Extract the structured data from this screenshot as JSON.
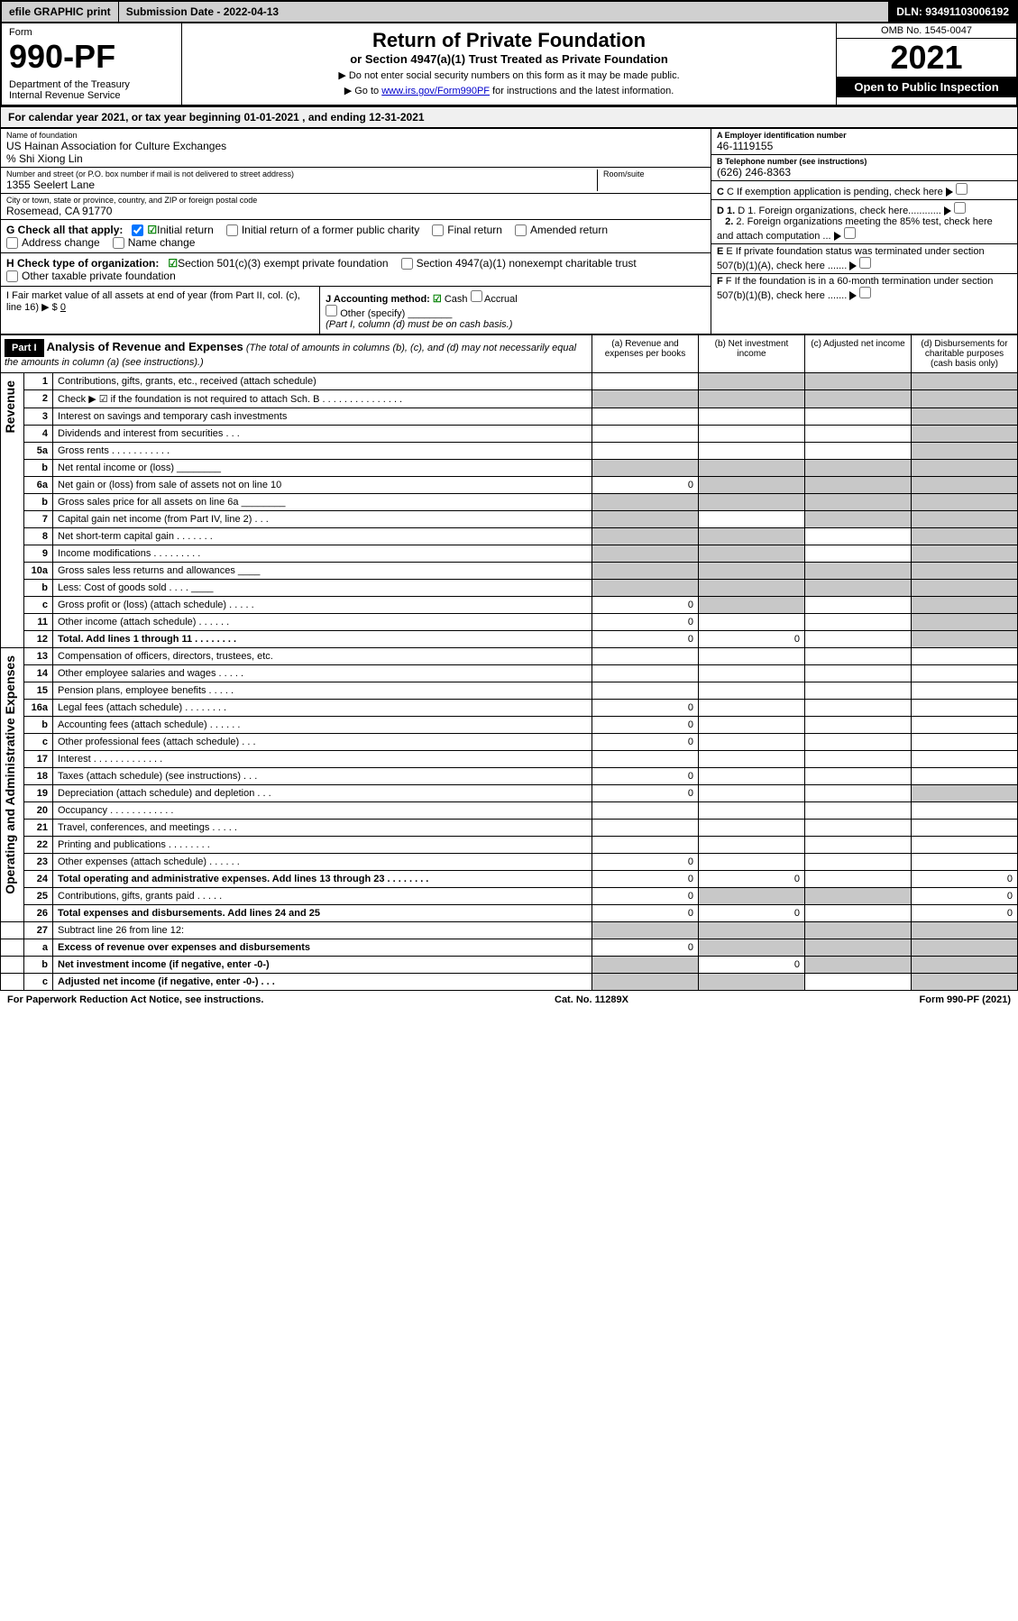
{
  "topbar": {
    "efile": "efile GRAPHIC print",
    "subdate": "Submission Date - 2022-04-13",
    "dln": "DLN: 93491103006192"
  },
  "header": {
    "form": "Form",
    "formnum": "990-PF",
    "dept": "Department of the Treasury\nInternal Revenue Service",
    "title": "Return of Private Foundation",
    "subtitle": "or Section 4947(a)(1) Trust Treated as Private Foundation",
    "note1": "▶ Do not enter social security numbers on this form as it may be made public.",
    "note2_pre": "▶ Go to ",
    "note2_link": "www.irs.gov/Form990PF",
    "note2_post": " for instructions and the latest information.",
    "omb": "OMB No. 1545-0047",
    "year": "2021",
    "inspect": "Open to Public Inspection"
  },
  "calyear": "For calendar year 2021, or tax year beginning 01-01-2021           , and ending 12-31-2021",
  "org": {
    "name_lbl": "Name of foundation",
    "name": "US Hainan Association for Culture Exchanges",
    "care": "% Shi Xiong Lin",
    "addr_lbl": "Number and street (or P.O. box number if mail is not delivered to street address)",
    "addr": "1355 Seelert Lane",
    "room_lbl": "Room/suite",
    "city_lbl": "City or town, state or province, country, and ZIP or foreign postal code",
    "city": "Rosemead, CA  91770",
    "ein_lbl": "A Employer identification number",
    "ein": "46-1119155",
    "tel_lbl": "B Telephone number (see instructions)",
    "tel": "(626) 246-8363",
    "c": "C If exemption application is pending, check here",
    "d1": "D 1. Foreign organizations, check here............",
    "d2": "2. Foreign organizations meeting the 85% test, check here and attach computation ...",
    "e": "E If private foundation status was terminated under section 507(b)(1)(A), check here .......",
    "f": "F If the foundation is in a 60-month termination under section 507(b)(1)(B), check here .......",
    "g": "G Check all that apply:",
    "g_opts": [
      "Initial return",
      "Initial return of a former public charity",
      "Final return",
      "Amended return",
      "Address change",
      "Name change"
    ],
    "h": "H Check type of organization:",
    "h_opts": [
      "Section 501(c)(3) exempt private foundation",
      "Section 4947(a)(1) nonexempt charitable trust",
      "Other taxable private foundation"
    ],
    "i": "I Fair market value of all assets at end of year (from Part II, col. (c), line 16) ▶ $",
    "i_val": "0",
    "j": "J Accounting method:",
    "j_opts": [
      "Cash",
      "Accrual",
      "Other (specify)"
    ],
    "j_note": "(Part I, column (d) must be on cash basis.)"
  },
  "part1": {
    "label": "Part I",
    "title": "Analysis of Revenue and Expenses",
    "title_note": " (The total of amounts in columns (b), (c), and (d) may not necessarily equal the amounts in column (a) (see instructions).)",
    "cols": [
      "(a) Revenue and expenses per books",
      "(b) Net investment income",
      "(c) Adjusted net income",
      "(d) Disbursements for charitable purposes (cash basis only)"
    ]
  },
  "sections": {
    "revenue": "Revenue",
    "expenses": "Operating and Administrative Expenses"
  },
  "rows": [
    {
      "n": "1",
      "d": "Contributions, gifts, grants, etc., received (attach schedule)",
      "a": "",
      "b": "g",
      "c": "g",
      "dd": "g"
    },
    {
      "n": "2",
      "d": "Check ▶ ☑ if the foundation is not required to attach Sch. B   .  .  .  .  .  .  .  .  .  .  .  .  .  .  .",
      "a": "g",
      "b": "g",
      "c": "g",
      "dd": "g"
    },
    {
      "n": "3",
      "d": "Interest on savings and temporary cash investments",
      "a": "",
      "b": "",
      "c": "",
      "dd": "g"
    },
    {
      "n": "4",
      "d": "Dividends and interest from securities   .  .  .",
      "a": "",
      "b": "",
      "c": "",
      "dd": "g"
    },
    {
      "n": "5a",
      "d": "Gross rents   .  .  .  .  .  .  .  .  .  .  .",
      "a": "",
      "b": "",
      "c": "",
      "dd": "g"
    },
    {
      "n": "b",
      "d": "Net rental income or (loss)  ________",
      "a": "g",
      "b": "g",
      "c": "g",
      "dd": "g"
    },
    {
      "n": "6a",
      "d": "Net gain or (loss) from sale of assets not on line 10",
      "a": "0",
      "b": "g",
      "c": "g",
      "dd": "g"
    },
    {
      "n": "b",
      "d": "Gross sales price for all assets on line 6a ________",
      "a": "g",
      "b": "g",
      "c": "g",
      "dd": "g"
    },
    {
      "n": "7",
      "d": "Capital gain net income (from Part IV, line 2)   .  .  .",
      "a": "g",
      "b": "",
      "c": "g",
      "dd": "g"
    },
    {
      "n": "8",
      "d": "Net short-term capital gain   .  .  .  .  .  .  .",
      "a": "g",
      "b": "g",
      "c": "",
      "dd": "g"
    },
    {
      "n": "9",
      "d": "Income modifications   .  .  .  .  .  .  .  .  .",
      "a": "g",
      "b": "g",
      "c": "",
      "dd": "g"
    },
    {
      "n": "10a",
      "d": "Gross sales less returns and allowances  ____",
      "a": "g",
      "b": "g",
      "c": "g",
      "dd": "g"
    },
    {
      "n": "b",
      "d": "Less: Cost of goods sold   .  .  .  .   ____",
      "a": "g",
      "b": "g",
      "c": "g",
      "dd": "g"
    },
    {
      "n": "c",
      "d": "Gross profit or (loss) (attach schedule)   .  .  .  .  .",
      "a": "0",
      "b": "g",
      "c": "",
      "dd": "g"
    },
    {
      "n": "11",
      "d": "Other income (attach schedule)   .  .  .  .  .  .",
      "a": "0",
      "b": "",
      "c": "",
      "dd": "g"
    },
    {
      "n": "12",
      "d": "Total. Add lines 1 through 11   .  .  .  .  .  .  .  .",
      "a": "0",
      "b": "0",
      "c": "",
      "dd": "g",
      "bold": true
    }
  ],
  "exp_rows": [
    {
      "n": "13",
      "d": "Compensation of officers, directors, trustees, etc.",
      "a": "",
      "b": "",
      "c": "",
      "dd": ""
    },
    {
      "n": "14",
      "d": "Other employee salaries and wages   .  .  .  .  .",
      "a": "",
      "b": "",
      "c": "",
      "dd": ""
    },
    {
      "n": "15",
      "d": "Pension plans, employee benefits   .  .  .  .  .",
      "a": "",
      "b": "",
      "c": "",
      "dd": ""
    },
    {
      "n": "16a",
      "d": "Legal fees (attach schedule)  .  .  .  .  .  .  .  .",
      "a": "0",
      "b": "",
      "c": "",
      "dd": ""
    },
    {
      "n": "b",
      "d": "Accounting fees (attach schedule)  .  .  .  .  .  .",
      "a": "0",
      "b": "",
      "c": "",
      "dd": ""
    },
    {
      "n": "c",
      "d": "Other professional fees (attach schedule)   .  .  .",
      "a": "0",
      "b": "",
      "c": "",
      "dd": ""
    },
    {
      "n": "17",
      "d": "Interest  .  .  .  .  .  .  .  .  .  .  .  .  .",
      "a": "",
      "b": "",
      "c": "",
      "dd": ""
    },
    {
      "n": "18",
      "d": "Taxes (attach schedule) (see instructions)   .  .  .",
      "a": "0",
      "b": "",
      "c": "",
      "dd": ""
    },
    {
      "n": "19",
      "d": "Depreciation (attach schedule) and depletion   .  .  .",
      "a": "0",
      "b": "",
      "c": "",
      "dd": "g"
    },
    {
      "n": "20",
      "d": "Occupancy  .  .  .  .  .  .  .  .  .  .  .  .",
      "a": "",
      "b": "",
      "c": "",
      "dd": ""
    },
    {
      "n": "21",
      "d": "Travel, conferences, and meetings   .  .  .  .  .",
      "a": "",
      "b": "",
      "c": "",
      "dd": ""
    },
    {
      "n": "22",
      "d": "Printing and publications   .  .  .  .  .  .  .  .",
      "a": "",
      "b": "",
      "c": "",
      "dd": ""
    },
    {
      "n": "23",
      "d": "Other expenses (attach schedule)  .  .  .  .  .  .",
      "a": "0",
      "b": "",
      "c": "",
      "dd": ""
    },
    {
      "n": "24",
      "d": "Total operating and administrative expenses. Add lines 13 through 23   .  .  .  .  .  .  .  .",
      "a": "0",
      "b": "0",
      "c": "",
      "dd": "0",
      "bold": true
    },
    {
      "n": "25",
      "d": "Contributions, gifts, grants paid   .  .  .  .  .",
      "a": "0",
      "b": "g",
      "c": "g",
      "dd": "0"
    },
    {
      "n": "26",
      "d": "Total expenses and disbursements. Add lines 24 and 25",
      "a": "0",
      "b": "0",
      "c": "",
      "dd": "0",
      "bold": true
    }
  ],
  "bottom_rows": [
    {
      "n": "27",
      "d": "Subtract line 26 from line 12:",
      "a": "g",
      "b": "g",
      "c": "g",
      "dd": "g"
    },
    {
      "n": "a",
      "d": "Excess of revenue over expenses and disbursements",
      "a": "0",
      "b": "g",
      "c": "g",
      "dd": "g",
      "bold": true
    },
    {
      "n": "b",
      "d": "Net investment income (if negative, enter -0-)",
      "a": "g",
      "b": "0",
      "c": "g",
      "dd": "g",
      "bold": true
    },
    {
      "n": "c",
      "d": "Adjusted net income (if negative, enter -0-)   .  .  .",
      "a": "g",
      "b": "g",
      "c": "",
      "dd": "g",
      "bold": true
    }
  ],
  "footer": {
    "left": "For Paperwork Reduction Act Notice, see instructions.",
    "mid": "Cat. No. 11289X",
    "right": "Form 990-PF (2021)"
  }
}
